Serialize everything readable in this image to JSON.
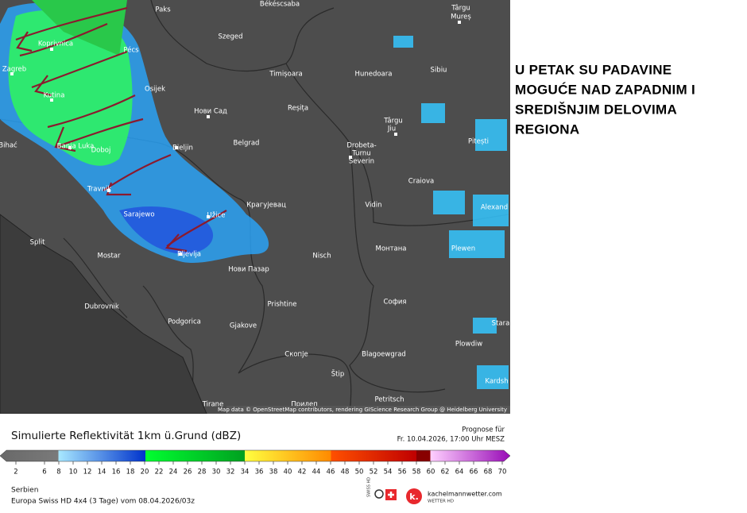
{
  "map": {
    "cities": [
      "Paks",
      "Békéscsaba",
      "Târgu",
      "Mureș",
      "Koprivnica",
      "Pécs",
      "Szeged",
      "Zagreb",
      "Osijek",
      "Timișoara",
      "Hunedoara",
      "Sibiu",
      "Kutina",
      "Нови Сад",
      "Reșița",
      "Târgu",
      "Jiu",
      "Pitești",
      "Bihać",
      "Banja Luka",
      "Doboj",
      "Bieljin",
      "Belgrad",
      "Drobeta-",
      "Turnu",
      "Severin",
      "Craiova",
      "Travnik",
      "Крагујевац",
      "Vidin",
      "Alexand",
      "Sarajewo",
      "Užice",
      "Split",
      "Mostar",
      "Pljevlja",
      "Nisch",
      "Монтана",
      "Plewen",
      "Нови Пазар",
      "София",
      "Dubrovnik",
      "Prishtine",
      "Stara",
      "Podgorica",
      "Gjakove",
      "Plowdiw",
      "Скопје",
      "Blagoewgrad",
      "Kardsh",
      "Štip",
      "Petritsch",
      "Tirane",
      "Прилеп"
    ],
    "attribution": "Map data © OpenStreetMap contributors, rendering GIScience Research Group @ Heidelberg University"
  },
  "annotation": [
    "U PETAK SU PADAVINE",
    "MOGUĆE NAD ZAPADNIM I",
    "SREDIŠNJIM DELOVIMA",
    "REGIONA"
  ],
  "legend": {
    "title": "Simulierte Reflektivität 1km ü.Grund (dBZ)",
    "forecast_label": "Prognose für",
    "forecast_time": "Fr. 10.04.2026, 17:00 Uhr MESZ",
    "ticks": [
      2,
      6,
      8,
      10,
      12,
      14,
      16,
      18,
      20,
      22,
      24,
      26,
      28,
      30,
      32,
      34,
      36,
      38,
      40,
      42,
      44,
      46,
      48,
      50,
      52,
      54,
      56,
      58,
      60,
      62,
      64,
      66,
      68,
      70
    ]
  },
  "footer": {
    "region": "Serbien",
    "model": "Europa Swiss HD 4x4 (3 Tage) vom 08.04.2026/03z",
    "swiss_hd": "SWISS HD",
    "brand": "kachelmannwetter.com",
    "brand_sub": "WETTER HD"
  }
}
